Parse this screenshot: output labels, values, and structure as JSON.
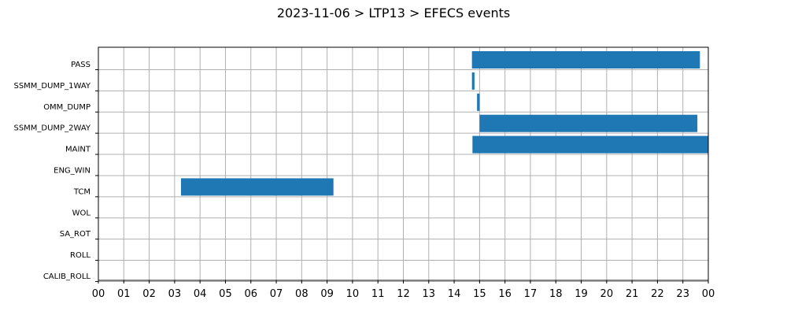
{
  "chart_data": {
    "type": "bar",
    "orientation": "horizontal-timeline",
    "title": "2023-11-06 > LTP13 > EFECS events",
    "xlabel": "",
    "ylabel": "",
    "x_range_hours": [
      0,
      24
    ],
    "x_tick_labels": [
      "00",
      "01",
      "02",
      "03",
      "04",
      "05",
      "06",
      "07",
      "08",
      "09",
      "10",
      "11",
      "12",
      "13",
      "14",
      "15",
      "16",
      "17",
      "18",
      "19",
      "20",
      "21",
      "22",
      "23",
      "00"
    ],
    "grid": true,
    "categories": [
      "PASS",
      "SSMM_DUMP_1WAY",
      "OMM_DUMP",
      "SSMM_DUMP_2WAY",
      "MAINT",
      "ENG_WIN",
      "TCM",
      "WOL",
      "SA_ROT",
      "ROLL",
      "CALIB_ROLL"
    ],
    "color": "#1f77b4",
    "events": [
      {
        "category": "PASS",
        "start_hour": 14.7,
        "end_hour": 23.67
      },
      {
        "category": "SSMM_DUMP_1WAY",
        "start_hour": 14.7,
        "end_hour": 14.8
      },
      {
        "category": "OMM_DUMP",
        "start_hour": 14.9,
        "end_hour": 15.0
      },
      {
        "category": "SSMM_DUMP_2WAY",
        "start_hour": 15.0,
        "end_hour": 23.57
      },
      {
        "category": "MAINT",
        "start_hour": 14.72,
        "end_hour": 24.0
      },
      {
        "category": "TCM",
        "start_hour": 3.25,
        "end_hour": 9.25
      }
    ]
  }
}
